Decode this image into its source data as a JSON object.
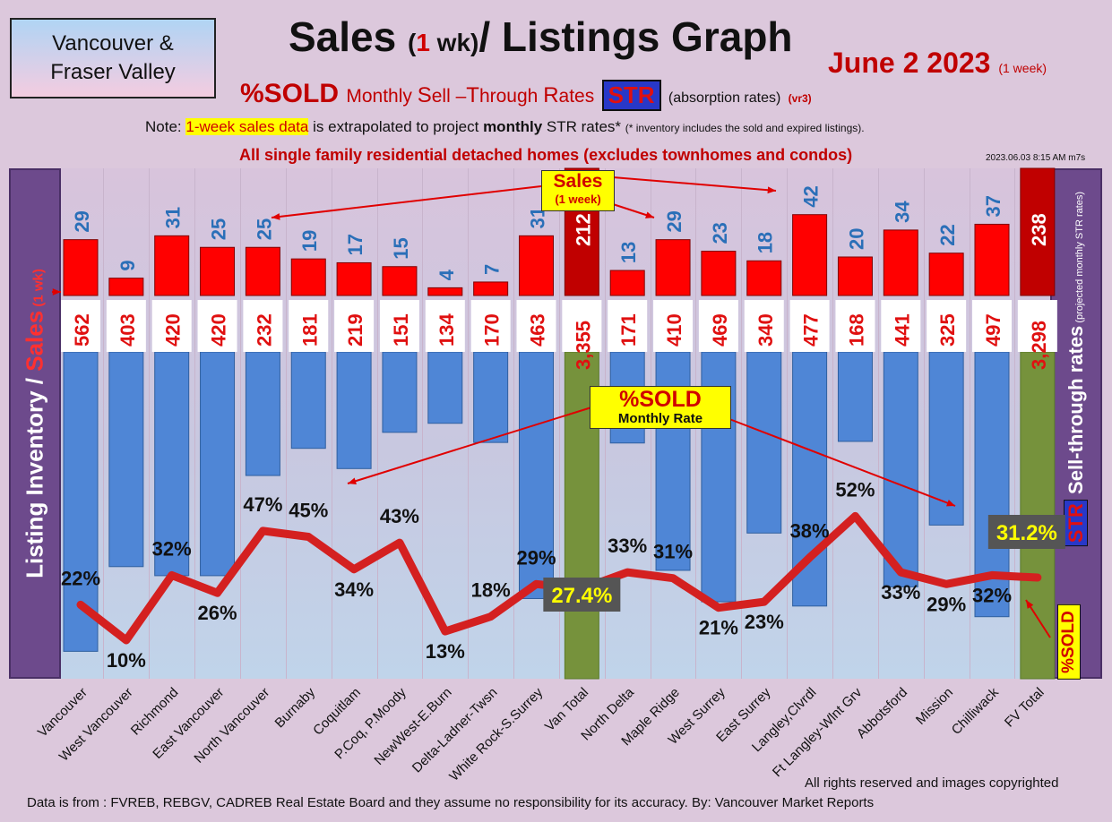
{
  "header": {
    "region_line1": "Vancouver &",
    "region_line2": "Fraser Valley",
    "title_part1": "Sales",
    "title_open": "(",
    "title_one": "1",
    "title_wk": " wk)",
    "title_part2": "/ Listings Graph",
    "date": "June 2  2023",
    "date_suffix": "(1 week)",
    "subtitle_pct": "%SOLD",
    "subtitle_m": "Monthly ",
    "subtitle_S": "S",
    "subtitle_ell": "ell –",
    "subtitle_T": "T",
    "subtitle_hrough": "hrough ",
    "subtitle_R": "R",
    "subtitle_ates": "ates",
    "subtitle_str": "STR",
    "subtitle_absorption": "(absorption rates)",
    "subtitle_version": "(vr3)",
    "note_prefix": "Note: ",
    "note_highlight": "1-week sales data",
    "note_mid": " is extrapolated to project ",
    "note_bold": "monthly",
    "note_rest": " STR rates* ",
    "note_small": "(* inventory includes the sold and expired listings).",
    "scope": "All single family residential detached homes (excludes townhomes and condos)",
    "timestamp": "2023.06.03 8:15 AM m7s"
  },
  "panels": {
    "left_label_1": "Listing Inventory ",
    "left_label_slash": "/ ",
    "left_label_2": "Sales",
    "left_label_wk": " (1 wk)",
    "right_label_str": "STR",
    "right_label_main": " Sell-through rates",
    "right_label_small": " (projected monthly STR rates)",
    "pct_tag": "%SOLD"
  },
  "callouts": {
    "sales_title": "Sales",
    "sales_sub": "(1 week)",
    "sold_title": "%SOLD",
    "sold_sub": "Monthly Rate"
  },
  "footer": {
    "rights": "All rights reserved and  images copyrighted",
    "source": "Data is from : FVREB, REBGV, CADREB Real Estate Board and they assume no responsibility for its accuracy. By: Vancouver Market Reports"
  },
  "chart_data": {
    "type": "bar",
    "categories": [
      "Vancouver",
      "West Vancouver",
      "Richmond",
      "East Vancouver",
      "North Vancouver",
      "Burnaby",
      "Coquitlam",
      "P.Coq, P.Moody",
      "NewWest-E.Burn",
      "Delta-Ladner-Twsn",
      "White Rock-S.Surrey",
      "Van Total",
      "North Delta",
      "Maple Ridge",
      "West Surrey",
      "East Surrey",
      "Langley,Clvrdl",
      "Ft Langley-Wlnt Grv",
      "Abbotsford",
      "Mission",
      "Chilliwack",
      "FV Total"
    ],
    "sales_labels": [
      "29",
      "9",
      "31",
      "25",
      "25",
      "19",
      "17",
      "15",
      "4",
      "7",
      "31",
      "212",
      "13",
      "29",
      "23",
      "18",
      "42",
      "20",
      "34",
      "22",
      "37",
      "238"
    ],
    "listing_labels": [
      "562",
      "403",
      "420",
      "420",
      "232",
      "181",
      "219",
      "151",
      "134",
      "170",
      "463",
      "3,355",
      "171",
      "410",
      "469",
      "340",
      "477",
      "168",
      "441",
      "325",
      "497",
      "3,298"
    ],
    "str_labels": [
      "22%",
      "10%",
      "32%",
      "26%",
      "47%",
      "45%",
      "34%",
      "43%",
      "13%",
      "18%",
      "29%",
      "27.4%",
      "33%",
      "31%",
      "21%",
      "23%",
      "38%",
      "52%",
      "33%",
      "29%",
      "32%",
      "31.2%"
    ],
    "series": [
      {
        "name": "Sales",
        "values": [
          29,
          9,
          31,
          25,
          25,
          19,
          17,
          15,
          4,
          7,
          31,
          212,
          13,
          29,
          23,
          18,
          42,
          20,
          34,
          22,
          37,
          238
        ],
        "color": "#ff0000"
      },
      {
        "name": "Listing Inventory",
        "values": [
          562,
          403,
          420,
          420,
          232,
          181,
          219,
          151,
          134,
          170,
          463,
          3355,
          171,
          410,
          469,
          340,
          477,
          168,
          441,
          325,
          497,
          3298
        ],
        "color": "#4f86d6"
      },
      {
        "name": "Sell-through rates",
        "values": [
          22,
          10,
          32,
          26,
          47,
          45,
          34,
          43,
          13,
          18,
          29,
          27.4,
          33,
          31,
          21,
          23,
          38,
          52,
          33,
          29,
          32,
          31.2
        ],
        "color": "#d42020"
      }
    ],
    "totals_indices": [
      11,
      21
    ],
    "total_bar_color": "#76923c",
    "total_sales_color": "#c00000",
    "total_rate_label_color": "#ffff00",
    "grid": false
  }
}
